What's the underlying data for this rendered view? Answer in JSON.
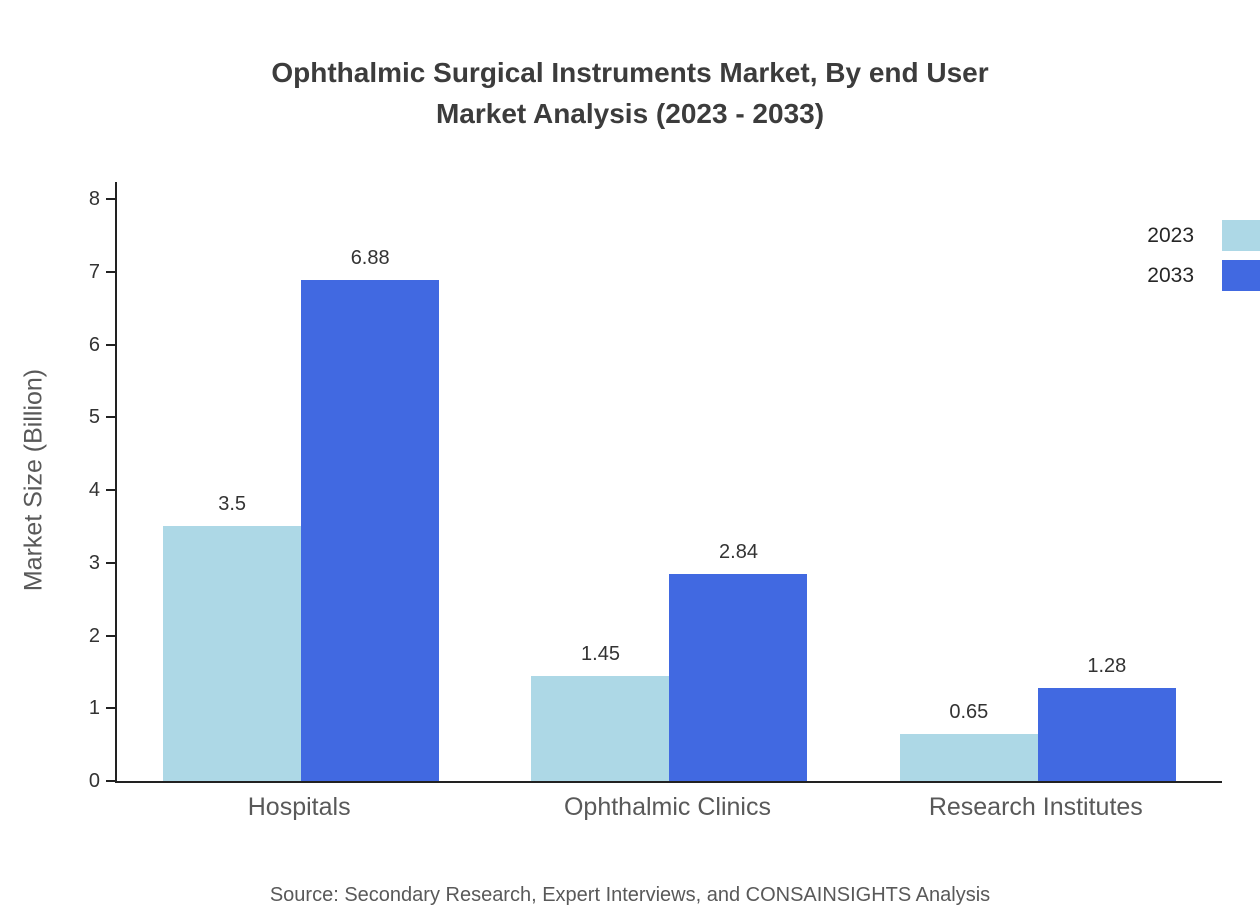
{
  "header": {
    "title_line1": "Ophthalmic Surgical Instruments Market, By end User",
    "title_line2": "Market Analysis (2023 - 2033)"
  },
  "footer": {
    "source": "Source: Secondary Research, Expert Interviews, and CONSAINSIGHTS Analysis"
  },
  "chart_data": {
    "type": "bar",
    "title": "Ophthalmic Surgical Instruments Market, By end User Market Analysis (2023 - 2033)",
    "categories": [
      "Hospitals",
      "Ophthalmic Clinics",
      "Research Institutes"
    ],
    "series": [
      {
        "name": "2023",
        "color": "#add8e6",
        "values": [
          3.5,
          1.45,
          0.65
        ]
      },
      {
        "name": "2033",
        "color": "#4169e1",
        "values": [
          6.88,
          2.84,
          1.28
        ]
      }
    ],
    "xlabel": "",
    "ylabel": "Market Size (Billion)",
    "ylim": [
      0,
      8
    ],
    "yticks": [
      0,
      1,
      2,
      3,
      4,
      5,
      6,
      7,
      8
    ],
    "grid": false,
    "legend_position": "top-right"
  }
}
